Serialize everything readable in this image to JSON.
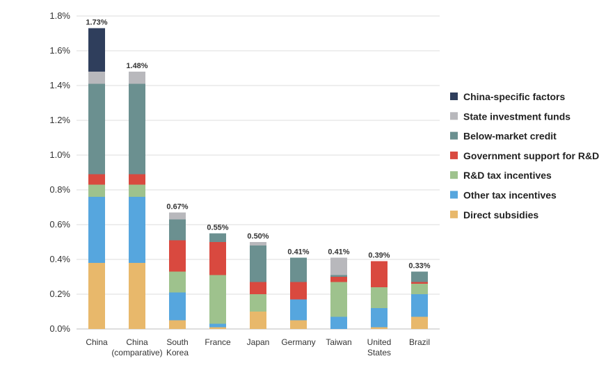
{
  "chart_data": {
    "type": "bar",
    "stacked": true,
    "title": "",
    "xlabel": "",
    "ylabel": "",
    "ylim": [
      0,
      1.8
    ],
    "yticks": [
      "0.0%",
      "0.2%",
      "0.4%",
      "0.6%",
      "0.8%",
      "1.0%",
      "1.2%",
      "1.4%",
      "1.6%",
      "1.8%"
    ],
    "grid": true,
    "legend_position": "right",
    "categories": [
      [
        "China"
      ],
      [
        "China",
        "(comparative)"
      ],
      [
        "South",
        "Korea"
      ],
      [
        "France"
      ],
      [
        "Japan"
      ],
      [
        "Germany"
      ],
      [
        "Taiwan"
      ],
      [
        "United",
        "States"
      ],
      [
        "Brazil"
      ]
    ],
    "totals": [
      "1.73%",
      "1.48%",
      "0.67%",
      "0.55%",
      "0.50%",
      "0.41%",
      "0.41%",
      "0.39%",
      "0.33%"
    ],
    "series": [
      {
        "name": "Direct subsidies",
        "color": "#e8b86b",
        "values": [
          0.38,
          0.38,
          0.05,
          0.01,
          0.1,
          0.05,
          0.0,
          0.01,
          0.07
        ]
      },
      {
        "name": "Other tax incentives",
        "color": "#56a6de",
        "values": [
          0.38,
          0.38,
          0.16,
          0.02,
          0.0,
          0.12,
          0.07,
          0.11,
          0.13
        ]
      },
      {
        "name": "R&D tax incentives",
        "color": "#9ec28d",
        "values": [
          0.07,
          0.07,
          0.12,
          0.28,
          0.1,
          0.0,
          0.2,
          0.12,
          0.06
        ]
      },
      {
        "name": "Government support for R&D",
        "color": "#d9493f",
        "values": [
          0.06,
          0.06,
          0.18,
          0.19,
          0.07,
          0.1,
          0.03,
          0.15,
          0.01
        ]
      },
      {
        "name": "Below-market credit",
        "color": "#6b9090",
        "values": [
          0.52,
          0.52,
          0.12,
          0.05,
          0.21,
          0.14,
          0.01,
          0.0,
          0.06
        ]
      },
      {
        "name": "State investment funds",
        "color": "#b8b8bc",
        "values": [
          0.07,
          0.07,
          0.04,
          0.0,
          0.02,
          0.0,
          0.1,
          0.0,
          0.0
        ]
      },
      {
        "name": "China-specific factors",
        "color": "#2f3e5c",
        "values": [
          0.25,
          0.0,
          0.0,
          0.0,
          0.0,
          0.0,
          0.0,
          0.0,
          0.0
        ]
      }
    ]
  }
}
